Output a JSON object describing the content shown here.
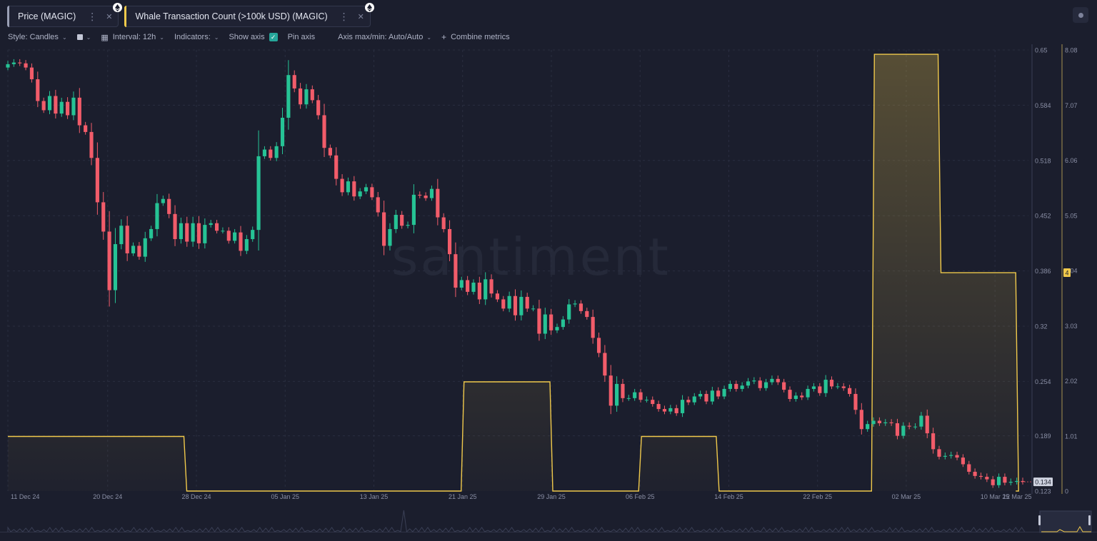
{
  "tabs": [
    {
      "label": "Price (MAGIC)",
      "color": "#9aa0b5",
      "menu_icon": "more-vertical-icon",
      "close_icon": "close-icon",
      "badge_icon": "ethereum-icon"
    },
    {
      "label": "Whale Transaction Count (>100k USD) (MAGIC)",
      "color": "#f0c94b",
      "menu_icon": "more-vertical-icon",
      "close_icon": "close-icon",
      "badge_icon": "ethereum-icon"
    }
  ],
  "toolbar": {
    "style": "Style: Candles",
    "interval": "Interval: 12h",
    "indicators": "Indicators:",
    "show_axis": "Show axis",
    "pin_axis": "Pin axis",
    "axis_minmax": "Axis max/min: Auto/Auto",
    "combine": "Combine metrics"
  },
  "watermark": "santiment",
  "colors": {
    "up": "#26c395",
    "down": "#f25c6a",
    "whale": "#f0c94b",
    "background": "#1b1e2d"
  },
  "chart_data": {
    "type": "candlestick + line",
    "x_ticks": [
      "11 Dec 24",
      "20 Dec 24",
      "28 Dec 24",
      "05 Jan 25",
      "13 Jan 25",
      "21 Jan 25",
      "29 Jan 25",
      "06 Feb 25",
      "14 Feb 25",
      "22 Feb 25",
      "02 Mar 25",
      "10 Mar 25",
      "12 Mar 25"
    ],
    "price_axis": {
      "min": 0.123,
      "max": 0.65,
      "ticks": [
        "0.65",
        "0.584",
        "0.518",
        "0.452",
        "0.386",
        "0.32",
        "0.254",
        "0.189",
        "0.123"
      ],
      "last_value": "0.134"
    },
    "whale_axis": {
      "min": 0,
      "max": 8.08,
      "ticks": [
        "8.08",
        "7.07",
        "6.06",
        "5.05",
        "4.04",
        "3.03",
        "2.02",
        "1.01",
        "0"
      ],
      "last_value": "4"
    },
    "price_close": [
      0.633,
      0.635,
      0.634,
      0.629,
      0.615,
      0.589,
      0.578,
      0.595,
      0.574,
      0.588,
      0.572,
      0.593,
      0.56,
      0.552,
      0.521,
      0.468,
      0.433,
      0.363,
      0.418,
      0.44,
      0.407,
      0.416,
      0.403,
      0.425,
      0.436,
      0.467,
      0.472,
      0.454,
      0.424,
      0.443,
      0.421,
      0.443,
      0.419,
      0.441,
      0.443,
      0.434,
      0.434,
      0.422,
      0.432,
      0.41,
      0.424,
      0.435,
      0.523,
      0.531,
      0.521,
      0.535,
      0.569,
      0.62,
      0.604,
      0.585,
      0.603,
      0.59,
      0.572,
      0.533,
      0.524,
      0.496,
      0.48,
      0.493,
      0.475,
      0.481,
      0.486,
      0.474,
      0.456,
      0.416,
      0.436,
      0.453,
      0.44,
      0.441,
      0.477,
      0.476,
      0.473,
      0.484,
      0.45,
      0.436,
      0.406,
      0.366,
      0.375,
      0.361,
      0.372,
      0.352,
      0.376,
      0.359,
      0.352,
      0.341,
      0.356,
      0.333,
      0.355,
      0.341,
      0.341,
      0.311,
      0.334,
      0.315,
      0.319,
      0.328,
      0.346,
      0.347,
      0.338,
      0.331,
      0.306,
      0.288,
      0.261,
      0.225,
      0.251,
      0.234,
      0.234,
      0.241,
      0.232,
      0.232,
      0.227,
      0.221,
      0.218,
      0.222,
      0.216,
      0.232,
      0.229,
      0.236,
      0.239,
      0.23,
      0.243,
      0.236,
      0.245,
      0.251,
      0.245,
      0.249,
      0.254,
      0.255,
      0.246,
      0.253,
      0.257,
      0.253,
      0.244,
      0.233,
      0.237,
      0.235,
      0.245,
      0.248,
      0.24,
      0.256,
      0.248,
      0.248,
      0.246,
      0.239,
      0.22,
      0.197,
      0.203,
      0.207,
      0.204,
      0.205,
      0.204,
      0.189,
      0.201,
      0.2,
      0.2,
      0.213,
      0.192,
      0.173,
      0.164,
      0.165,
      0.166,
      0.163,
      0.155,
      0.146,
      0.141,
      0.14,
      0.137,
      0.13,
      0.14,
      0.133,
      0.134,
      0.135,
      0.134
    ],
    "whale_steps": [
      {
        "from": "11 Dec 24",
        "to": "27 Dec 24",
        "value": 1
      },
      {
        "from": "27 Dec 24",
        "to": "21 Jan 25",
        "value": 0
      },
      {
        "from": "21 Jan 25",
        "to": "29 Jan 25",
        "value": 2
      },
      {
        "from": "29 Jan 25",
        "to": "06 Feb 25",
        "value": 0
      },
      {
        "from": "06 Feb 25",
        "to": "13 Feb 25",
        "value": 1
      },
      {
        "from": "13 Feb 25",
        "to": "27 Feb 25",
        "value": 0
      },
      {
        "from": "27 Feb 25",
        "to": "05 Mar 25",
        "value": 8
      },
      {
        "from": "05 Mar 25",
        "to": "12 Mar 25",
        "value": 4
      },
      {
        "from": "12 Mar 25",
        "to": "12 Mar 25",
        "value": 0
      }
    ]
  }
}
